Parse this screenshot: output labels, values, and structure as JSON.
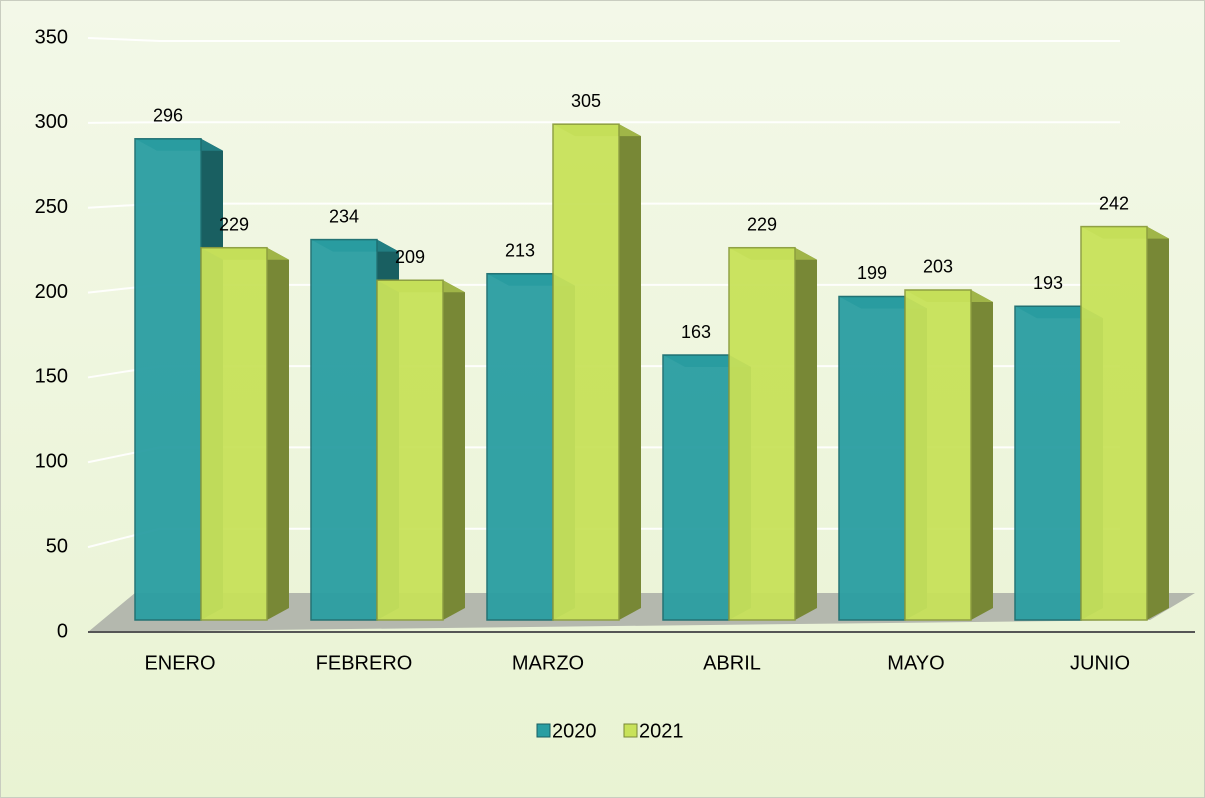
{
  "chart_data": {
    "type": "bar",
    "categories": [
      "ENERO",
      "FEBRERO",
      "MARZO",
      "ABRIL",
      "MAYO",
      "JUNIO"
    ],
    "series": [
      {
        "name": "2020",
        "color": "#2a9ea2",
        "values": [
          296,
          234,
          213,
          163,
          199,
          193
        ]
      },
      {
        "name": "2021",
        "color": "#c8e25a",
        "values": [
          229,
          209,
          305,
          229,
          203,
          242
        ]
      }
    ],
    "ylim": [
      0,
      350
    ],
    "yticks": [
      0,
      50,
      100,
      150,
      200,
      250,
      300,
      350
    ],
    "grid": true,
    "legend": "bottom"
  }
}
